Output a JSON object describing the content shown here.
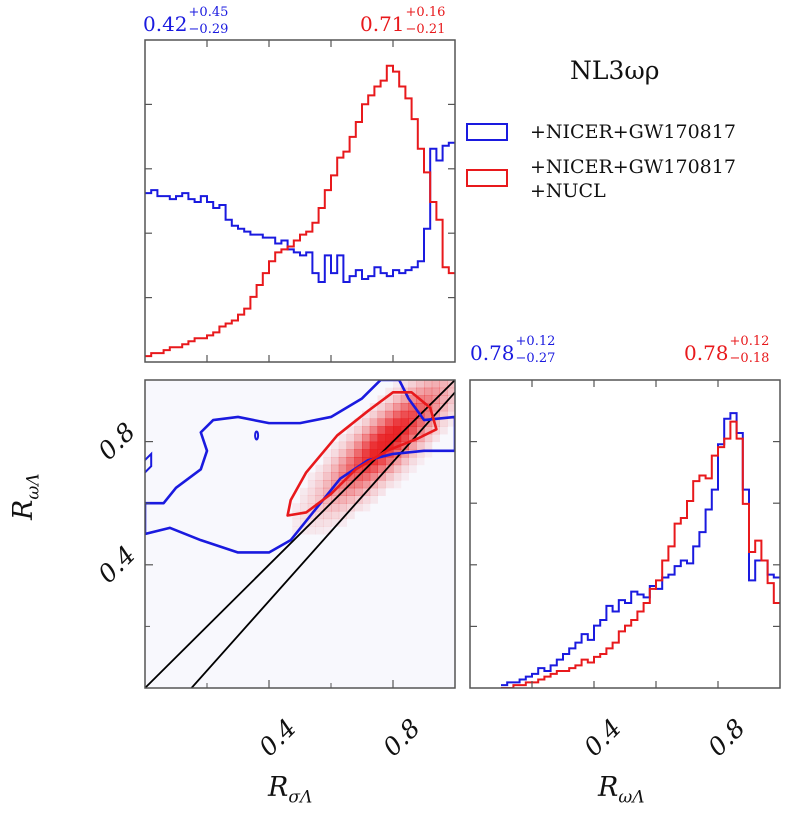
{
  "title": "NL3ωρ",
  "colors": {
    "blue": "#1a1adf",
    "red": "#e8191c",
    "contour_line": "#000000",
    "frame": "#555555"
  },
  "legend": {
    "items": [
      {
        "line1": "+NICER+GW170817",
        "line2": "",
        "color": "#1a1adf"
      },
      {
        "line1": "+NICER+GW170817",
        "line2": "+NUCL",
        "color": "#e8191c"
      }
    ]
  },
  "annotations": {
    "top_blue": {
      "base": "0.42",
      "sup": "+0.45",
      "sub": "−0.29"
    },
    "top_red": {
      "base": "0.71",
      "sup": "+0.16",
      "sub": "−0.21"
    },
    "right_blue": {
      "base": "0.78",
      "sup": "+0.12",
      "sub": "−0.27"
    },
    "right_red": {
      "base": "0.78",
      "sup": "+0.12",
      "sub": "−0.18"
    }
  },
  "axis_labels": {
    "x_left": {
      "main": "R",
      "sub": "σΛ"
    },
    "x_right": {
      "main": "R",
      "sub": "ωΛ"
    },
    "y_left": {
      "main": "R",
      "sub": "ωΛ"
    }
  },
  "chart_data": [
    {
      "type": "area",
      "panel": "marginal R_σΛ",
      "xlim": [
        0.0,
        1.0
      ],
      "series": [
        {
          "name": "+NICER+GW170817",
          "x": [
            0.0,
            0.02,
            0.04,
            0.06,
            0.08,
            0.1,
            0.12,
            0.14,
            0.16,
            0.18,
            0.2,
            0.22,
            0.24,
            0.26,
            0.28,
            0.3,
            0.32,
            0.34,
            0.36,
            0.38,
            0.4,
            0.42,
            0.44,
            0.46,
            0.48,
            0.5,
            0.52,
            0.54,
            0.56,
            0.58,
            0.6,
            0.62,
            0.64,
            0.66,
            0.68,
            0.7,
            0.72,
            0.74,
            0.76,
            0.78,
            0.8,
            0.82,
            0.84,
            0.86,
            0.88,
            0.9,
            0.92,
            0.94,
            0.96,
            0.98
          ],
          "values": [
            0.57,
            0.58,
            0.56,
            0.56,
            0.55,
            0.56,
            0.57,
            0.55,
            0.54,
            0.56,
            0.54,
            0.52,
            0.53,
            0.48,
            0.46,
            0.45,
            0.44,
            0.43,
            0.43,
            0.42,
            0.42,
            0.4,
            0.41,
            0.38,
            0.37,
            0.36,
            0.37,
            0.3,
            0.27,
            0.36,
            0.3,
            0.36,
            0.27,
            0.29,
            0.31,
            0.28,
            0.29,
            0.32,
            0.3,
            0.29,
            0.31,
            0.3,
            0.31,
            0.32,
            0.34,
            0.45,
            0.72,
            0.68,
            0.73,
            0.74
          ]
        },
        {
          "name": "+NICER+GW170817 +NUCL",
          "x": [
            0.0,
            0.02,
            0.04,
            0.06,
            0.08,
            0.1,
            0.12,
            0.14,
            0.16,
            0.18,
            0.2,
            0.22,
            0.24,
            0.26,
            0.28,
            0.3,
            0.32,
            0.34,
            0.36,
            0.38,
            0.4,
            0.42,
            0.44,
            0.46,
            0.48,
            0.5,
            0.52,
            0.54,
            0.56,
            0.58,
            0.6,
            0.62,
            0.64,
            0.66,
            0.68,
            0.7,
            0.72,
            0.74,
            0.76,
            0.78,
            0.8,
            0.82,
            0.84,
            0.86,
            0.88,
            0.9,
            0.92,
            0.94,
            0.96,
            0.98
          ],
          "values": [
            0.02,
            0.03,
            0.03,
            0.04,
            0.05,
            0.05,
            0.06,
            0.07,
            0.08,
            0.08,
            0.09,
            0.1,
            0.12,
            0.13,
            0.14,
            0.16,
            0.18,
            0.22,
            0.26,
            0.3,
            0.34,
            0.37,
            0.38,
            0.39,
            0.41,
            0.43,
            0.44,
            0.47,
            0.52,
            0.58,
            0.63,
            0.69,
            0.71,
            0.76,
            0.81,
            0.87,
            0.9,
            0.93,
            0.95,
            1.0,
            0.98,
            0.93,
            0.89,
            0.82,
            0.72,
            0.64,
            0.54,
            0.48,
            0.32,
            0.3
          ]
        }
      ]
    },
    {
      "type": "area",
      "panel": "marginal R_ωΛ",
      "xlim": [
        0.0,
        1.0
      ],
      "series": [
        {
          "name": "+NICER+GW170817",
          "x": [
            0.1,
            0.12,
            0.14,
            0.16,
            0.18,
            0.2,
            0.22,
            0.24,
            0.26,
            0.28,
            0.3,
            0.32,
            0.34,
            0.36,
            0.38,
            0.4,
            0.42,
            0.44,
            0.46,
            0.48,
            0.5,
            0.52,
            0.54,
            0.56,
            0.58,
            0.6,
            0.62,
            0.64,
            0.66,
            0.68,
            0.7,
            0.72,
            0.74,
            0.76,
            0.78,
            0.8,
            0.82,
            0.84,
            0.86,
            0.88,
            0.9,
            0.92,
            0.94,
            0.96,
            0.98
          ],
          "values": [
            0.01,
            0.02,
            0.02,
            0.03,
            0.04,
            0.05,
            0.07,
            0.06,
            0.08,
            0.1,
            0.12,
            0.14,
            0.16,
            0.19,
            0.17,
            0.22,
            0.24,
            0.29,
            0.27,
            0.31,
            0.3,
            0.34,
            0.33,
            0.32,
            0.36,
            0.35,
            0.39,
            0.4,
            0.43,
            0.45,
            0.44,
            0.5,
            0.55,
            0.63,
            0.7,
            0.86,
            0.95,
            0.97,
            0.9,
            0.7,
            0.38,
            0.45,
            0.45,
            0.4,
            0.39
          ]
        },
        {
          "name": "+NICER+GW170817 +NUCL",
          "x": [
            0.1,
            0.12,
            0.14,
            0.16,
            0.18,
            0.2,
            0.22,
            0.24,
            0.26,
            0.28,
            0.3,
            0.32,
            0.34,
            0.36,
            0.38,
            0.4,
            0.42,
            0.44,
            0.46,
            0.48,
            0.5,
            0.52,
            0.54,
            0.56,
            0.58,
            0.6,
            0.62,
            0.64,
            0.66,
            0.68,
            0.7,
            0.72,
            0.74,
            0.76,
            0.78,
            0.8,
            0.82,
            0.84,
            0.86,
            0.88,
            0.9,
            0.92,
            0.94,
            0.96,
            0.98
          ],
          "values": [
            0.0,
            0.0,
            0.01,
            0.01,
            0.02,
            0.02,
            0.03,
            0.04,
            0.05,
            0.06,
            0.06,
            0.07,
            0.08,
            0.1,
            0.09,
            0.11,
            0.12,
            0.14,
            0.16,
            0.2,
            0.22,
            0.24,
            0.27,
            0.3,
            0.35,
            0.38,
            0.45,
            0.5,
            0.58,
            0.6,
            0.66,
            0.73,
            0.75,
            0.74,
            0.82,
            0.85,
            0.88,
            0.94,
            0.88,
            0.65,
            0.48,
            0.52,
            0.45,
            0.37,
            0.3
          ]
        }
      ]
    },
    {
      "type": "heatmap",
      "panel": "joint R_σΛ vs R_ωΛ",
      "xlim": [
        0.0,
        1.0
      ],
      "ylim": [
        0.0,
        1.0
      ],
      "xticks": [
        0.4,
        0.8
      ],
      "yticks": [
        0.4,
        0.8
      ],
      "peak": [
        0.78,
        0.8
      ],
      "contours": [
        {
          "name": "+NICER+GW170817",
          "points": [
            [
              0.0,
              0.5
            ],
            [
              0.08,
              0.52
            ],
            [
              0.18,
              0.48
            ],
            [
              0.3,
              0.44
            ],
            [
              0.4,
              0.44
            ],
            [
              0.47,
              0.48
            ],
            [
              0.55,
              0.58
            ],
            [
              0.63,
              0.68
            ],
            [
              0.72,
              0.74
            ],
            [
              0.8,
              0.76
            ],
            [
              0.9,
              0.77
            ],
            [
              1.0,
              0.77
            ],
            [
              1.0,
              0.88
            ],
            [
              0.9,
              0.87
            ],
            [
              0.85,
              0.94
            ],
            [
              0.82,
              1.0
            ],
            [
              0.76,
              1.0
            ],
            [
              0.7,
              0.94
            ],
            [
              0.6,
              0.88
            ],
            [
              0.5,
              0.86
            ],
            [
              0.4,
              0.86
            ],
            [
              0.3,
              0.88
            ],
            [
              0.22,
              0.87
            ],
            [
              0.18,
              0.83
            ],
            [
              0.2,
              0.77
            ],
            [
              0.18,
              0.71
            ],
            [
              0.1,
              0.65
            ],
            [
              0.06,
              0.6
            ],
            [
              0.0,
              0.6
            ]
          ]
        },
        {
          "name": "+NICER+GW170817 +NUCL",
          "points": [
            [
              0.46,
              0.56
            ],
            [
              0.52,
              0.57
            ],
            [
              0.6,
              0.63
            ],
            [
              0.68,
              0.71
            ],
            [
              0.78,
              0.77
            ],
            [
              0.88,
              0.81
            ],
            [
              0.94,
              0.84
            ],
            [
              0.92,
              0.91
            ],
            [
              0.86,
              0.96
            ],
            [
              0.8,
              0.96
            ],
            [
              0.72,
              0.9
            ],
            [
              0.62,
              0.82
            ],
            [
              0.52,
              0.7
            ],
            [
              0.47,
              0.61
            ]
          ]
        }
      ],
      "lines": [
        {
          "x": [
            0.0,
            1.0
          ],
          "y": [
            0.0,
            1.0
          ]
        },
        {
          "x": [
            0.15,
            1.0
          ],
          "y": [
            0.0,
            0.96
          ]
        }
      ]
    }
  ]
}
